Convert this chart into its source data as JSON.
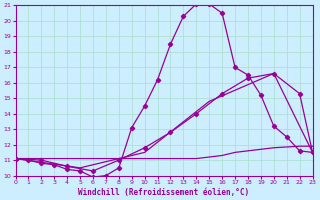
{
  "xlabel": "Windchill (Refroidissement éolien,°C)",
  "bg_color": "#cceeff",
  "grid_color": "#aaddcc",
  "line_color": "#990099",
  "xmin": 0,
  "xmax": 23,
  "ymin": 10,
  "ymax": 21,
  "yticks": [
    10,
    11,
    12,
    13,
    14,
    15,
    16,
    17,
    18,
    19,
    20,
    21
  ],
  "xticks": [
    0,
    1,
    2,
    3,
    4,
    5,
    6,
    7,
    8,
    9,
    10,
    11,
    12,
    13,
    14,
    15,
    16,
    17,
    18,
    19,
    20,
    21,
    22,
    23
  ],
  "line_peak_x": [
    0,
    1,
    2,
    3,
    4,
    5,
    6,
    7,
    8,
    9,
    10,
    11,
    12,
    13,
    14,
    15,
    16,
    17,
    18,
    19,
    20,
    21,
    22,
    23
  ],
  "line_peak_y": [
    11.1,
    11.0,
    10.8,
    10.7,
    10.4,
    10.3,
    9.9,
    10.0,
    10.5,
    13.1,
    14.5,
    16.2,
    18.5,
    20.3,
    21.1,
    21.1,
    20.5,
    17.0,
    16.5,
    15.2,
    13.2,
    12.5,
    11.6,
    11.5
  ],
  "line_flat_x": [
    0,
    1,
    2,
    3,
    4,
    5,
    6,
    7,
    8,
    9,
    10,
    11,
    12,
    13,
    14,
    15,
    16,
    17,
    18,
    19,
    20,
    21,
    22,
    23
  ],
  "line_flat_y": [
    11.1,
    11.1,
    11.1,
    11.1,
    11.1,
    11.1,
    11.1,
    11.1,
    11.1,
    11.1,
    11.1,
    11.1,
    11.1,
    11.1,
    11.1,
    11.2,
    11.3,
    11.5,
    11.6,
    11.7,
    11.8,
    11.85,
    11.9,
    11.9
  ],
  "line_diag1_x": [
    0,
    2,
    4,
    6,
    8,
    10,
    12,
    14,
    16,
    18,
    20,
    22,
    23
  ],
  "line_diag1_y": [
    11.1,
    11.0,
    10.6,
    10.3,
    11.0,
    11.8,
    12.8,
    14.0,
    15.3,
    16.3,
    16.6,
    15.3,
    11.5
  ],
  "line_diag2_x": [
    0,
    5,
    10,
    15,
    20,
    23
  ],
  "line_diag2_y": [
    11.1,
    10.5,
    11.5,
    14.8,
    16.6,
    11.5
  ]
}
